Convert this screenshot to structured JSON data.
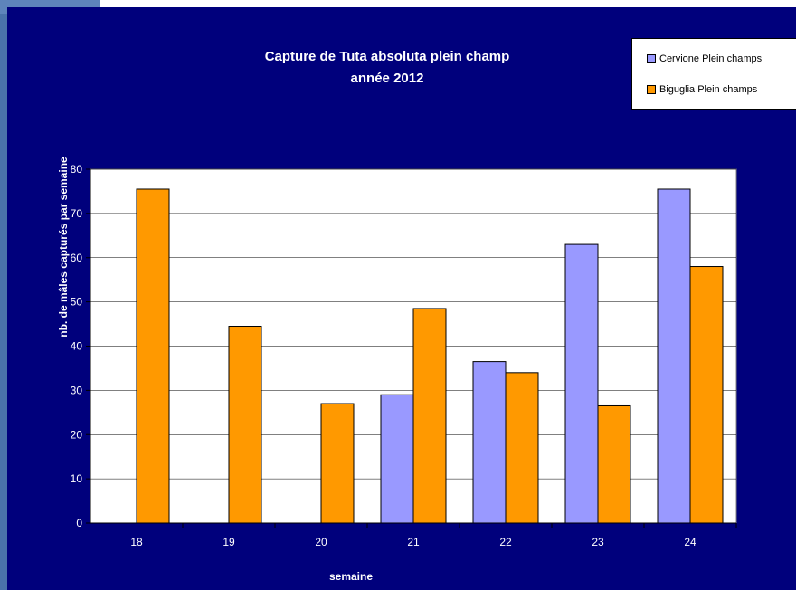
{
  "chart_data": {
    "type": "bar",
    "title": "Capture de Tuta absoluta plein champ",
    "subtitle": "année 2012",
    "xlabel": "semaine",
    "ylabel": "nb. de mâles capturés par semaine",
    "categories": [
      "18",
      "19",
      "20",
      "21",
      "22",
      "23",
      "24"
    ],
    "ylim": [
      0,
      80
    ],
    "yticks": [
      "0",
      "10",
      "20",
      "30",
      "40",
      "50",
      "60",
      "70",
      "80"
    ],
    "grid": true,
    "legend_position": "top-right",
    "series": [
      {
        "name": "Cervione Plein champs",
        "color": "#9999ff",
        "values": [
          0,
          0,
          0,
          29,
          36.5,
          63,
          75.5
        ]
      },
      {
        "name": "Biguglia Plein champs",
        "color": "#ff9900",
        "values": [
          75.5,
          44.5,
          27,
          48.5,
          34,
          26.5,
          58
        ]
      }
    ]
  }
}
